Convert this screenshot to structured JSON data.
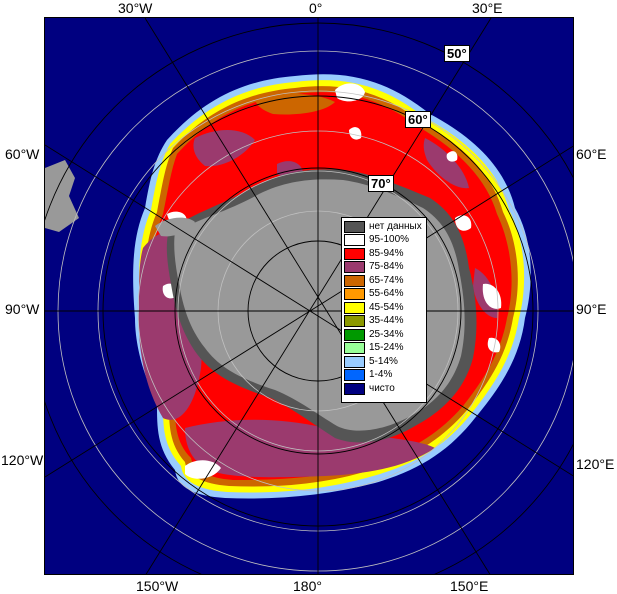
{
  "map": {
    "longitude_labels": {
      "top": [
        "30°W",
        "0°",
        "30°E"
      ],
      "left": [
        "60°W",
        "90°W",
        "120°W"
      ],
      "right": [
        "60°E",
        "90°E",
        "120°E"
      ],
      "bottom": [
        "150°W",
        "180°",
        "150°E"
      ]
    },
    "latitude_labels": [
      "50°",
      "60°",
      "70°"
    ]
  },
  "legend": {
    "items": [
      {
        "label": "нет данных",
        "color": "#555555"
      },
      {
        "label": "95-100%",
        "color": "#ffffff"
      },
      {
        "label": "85-94%",
        "color": "#ff0000"
      },
      {
        "label": "75-84%",
        "color": "#9b3a6e"
      },
      {
        "label": "65-74%",
        "color": "#cc6600"
      },
      {
        "label": "55-64%",
        "color": "#ff9900"
      },
      {
        "label": "45-54%",
        "color": "#ffff00"
      },
      {
        "label": "35-44%",
        "color": "#8c9900"
      },
      {
        "label": "25-34%",
        "color": "#009900"
      },
      {
        "label": "15-24%",
        "color": "#99ff99"
      },
      {
        "label": "5-14%",
        "color": "#99ccff"
      },
      {
        "label": "1-4%",
        "color": "#0066ff"
      },
      {
        "label": "чисто",
        "color": "#000080"
      }
    ]
  },
  "colors": {
    "ocean": "#000080",
    "land_ice": "#999999",
    "no_data": "#555555"
  }
}
